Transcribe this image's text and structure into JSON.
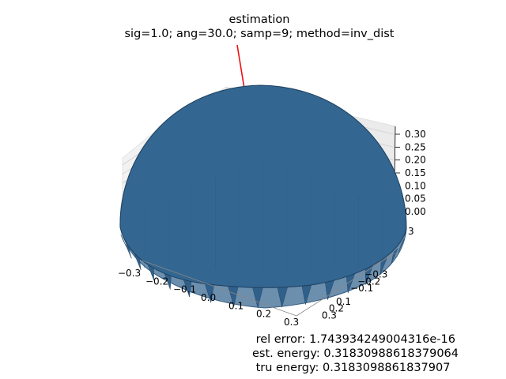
{
  "chart_data": {
    "type": "surface3d",
    "title_line1": "estimation",
    "title_line2": "sig=1.0; ang=30.0; samp=9; method=inv_dist",
    "z_ticks": [
      "0.00",
      "0.05",
      "0.10",
      "0.15",
      "0.20",
      "0.25",
      "0.30"
    ],
    "z_range": [
      0.0,
      0.32
    ],
    "x_ticks": [
      "−0.3",
      "−0.2",
      "−0.1",
      "0.0",
      "0.1",
      "0.2",
      "0.3"
    ],
    "y_ticks": [
      "0.3",
      "0.2",
      "0.1",
      "−0.1",
      "−0.2",
      "−0.3"
    ],
    "y_axis_partial_label": "3",
    "xy_range": [
      -0.32,
      0.32
    ],
    "surface_color": "#336690",
    "edge_color": "#24496a",
    "normal_line_color": "#ee1111",
    "grid": true
  },
  "annotations": {
    "rel_error": " rel error: 1.743934249004316e-16",
    "est_energy": "est. energy: 0.31830988618379064",
    "tru_energy": " tru energy: 0.3183098861837907"
  }
}
